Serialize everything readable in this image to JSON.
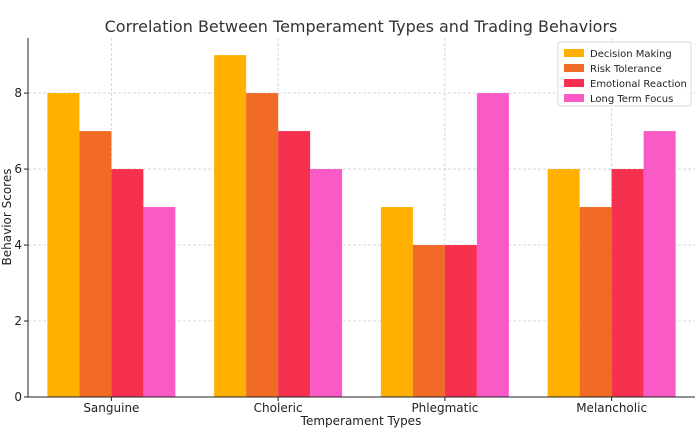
{
  "chart_data": {
    "type": "bar",
    "title": "Correlation Between Temperament Types and Trading Behaviors",
    "xlabel": "Temperament Types",
    "ylabel": "Behavior Scores",
    "categories": [
      "Sanguine",
      "Choleric",
      "Phlegmatic",
      "Melancholic"
    ],
    "series": [
      {
        "name": "Decision Making",
        "values": [
          8,
          9,
          5,
          6
        ],
        "color": "#FFB000"
      },
      {
        "name": "Risk Tolerance",
        "values": [
          7,
          8,
          4,
          5
        ],
        "color": "#F26B26"
      },
      {
        "name": "Emotional Reaction",
        "values": [
          6,
          7,
          4,
          6
        ],
        "color": "#F5314F"
      },
      {
        "name": "Long Term Focus",
        "values": [
          5,
          6,
          8,
          7
        ],
        "color": "#FA5AC5"
      }
    ],
    "ylim": [
      0,
      9.45
    ],
    "yticks": [
      0,
      2,
      4,
      6,
      8
    ],
    "grid": true,
    "legend_position": "top-right"
  }
}
